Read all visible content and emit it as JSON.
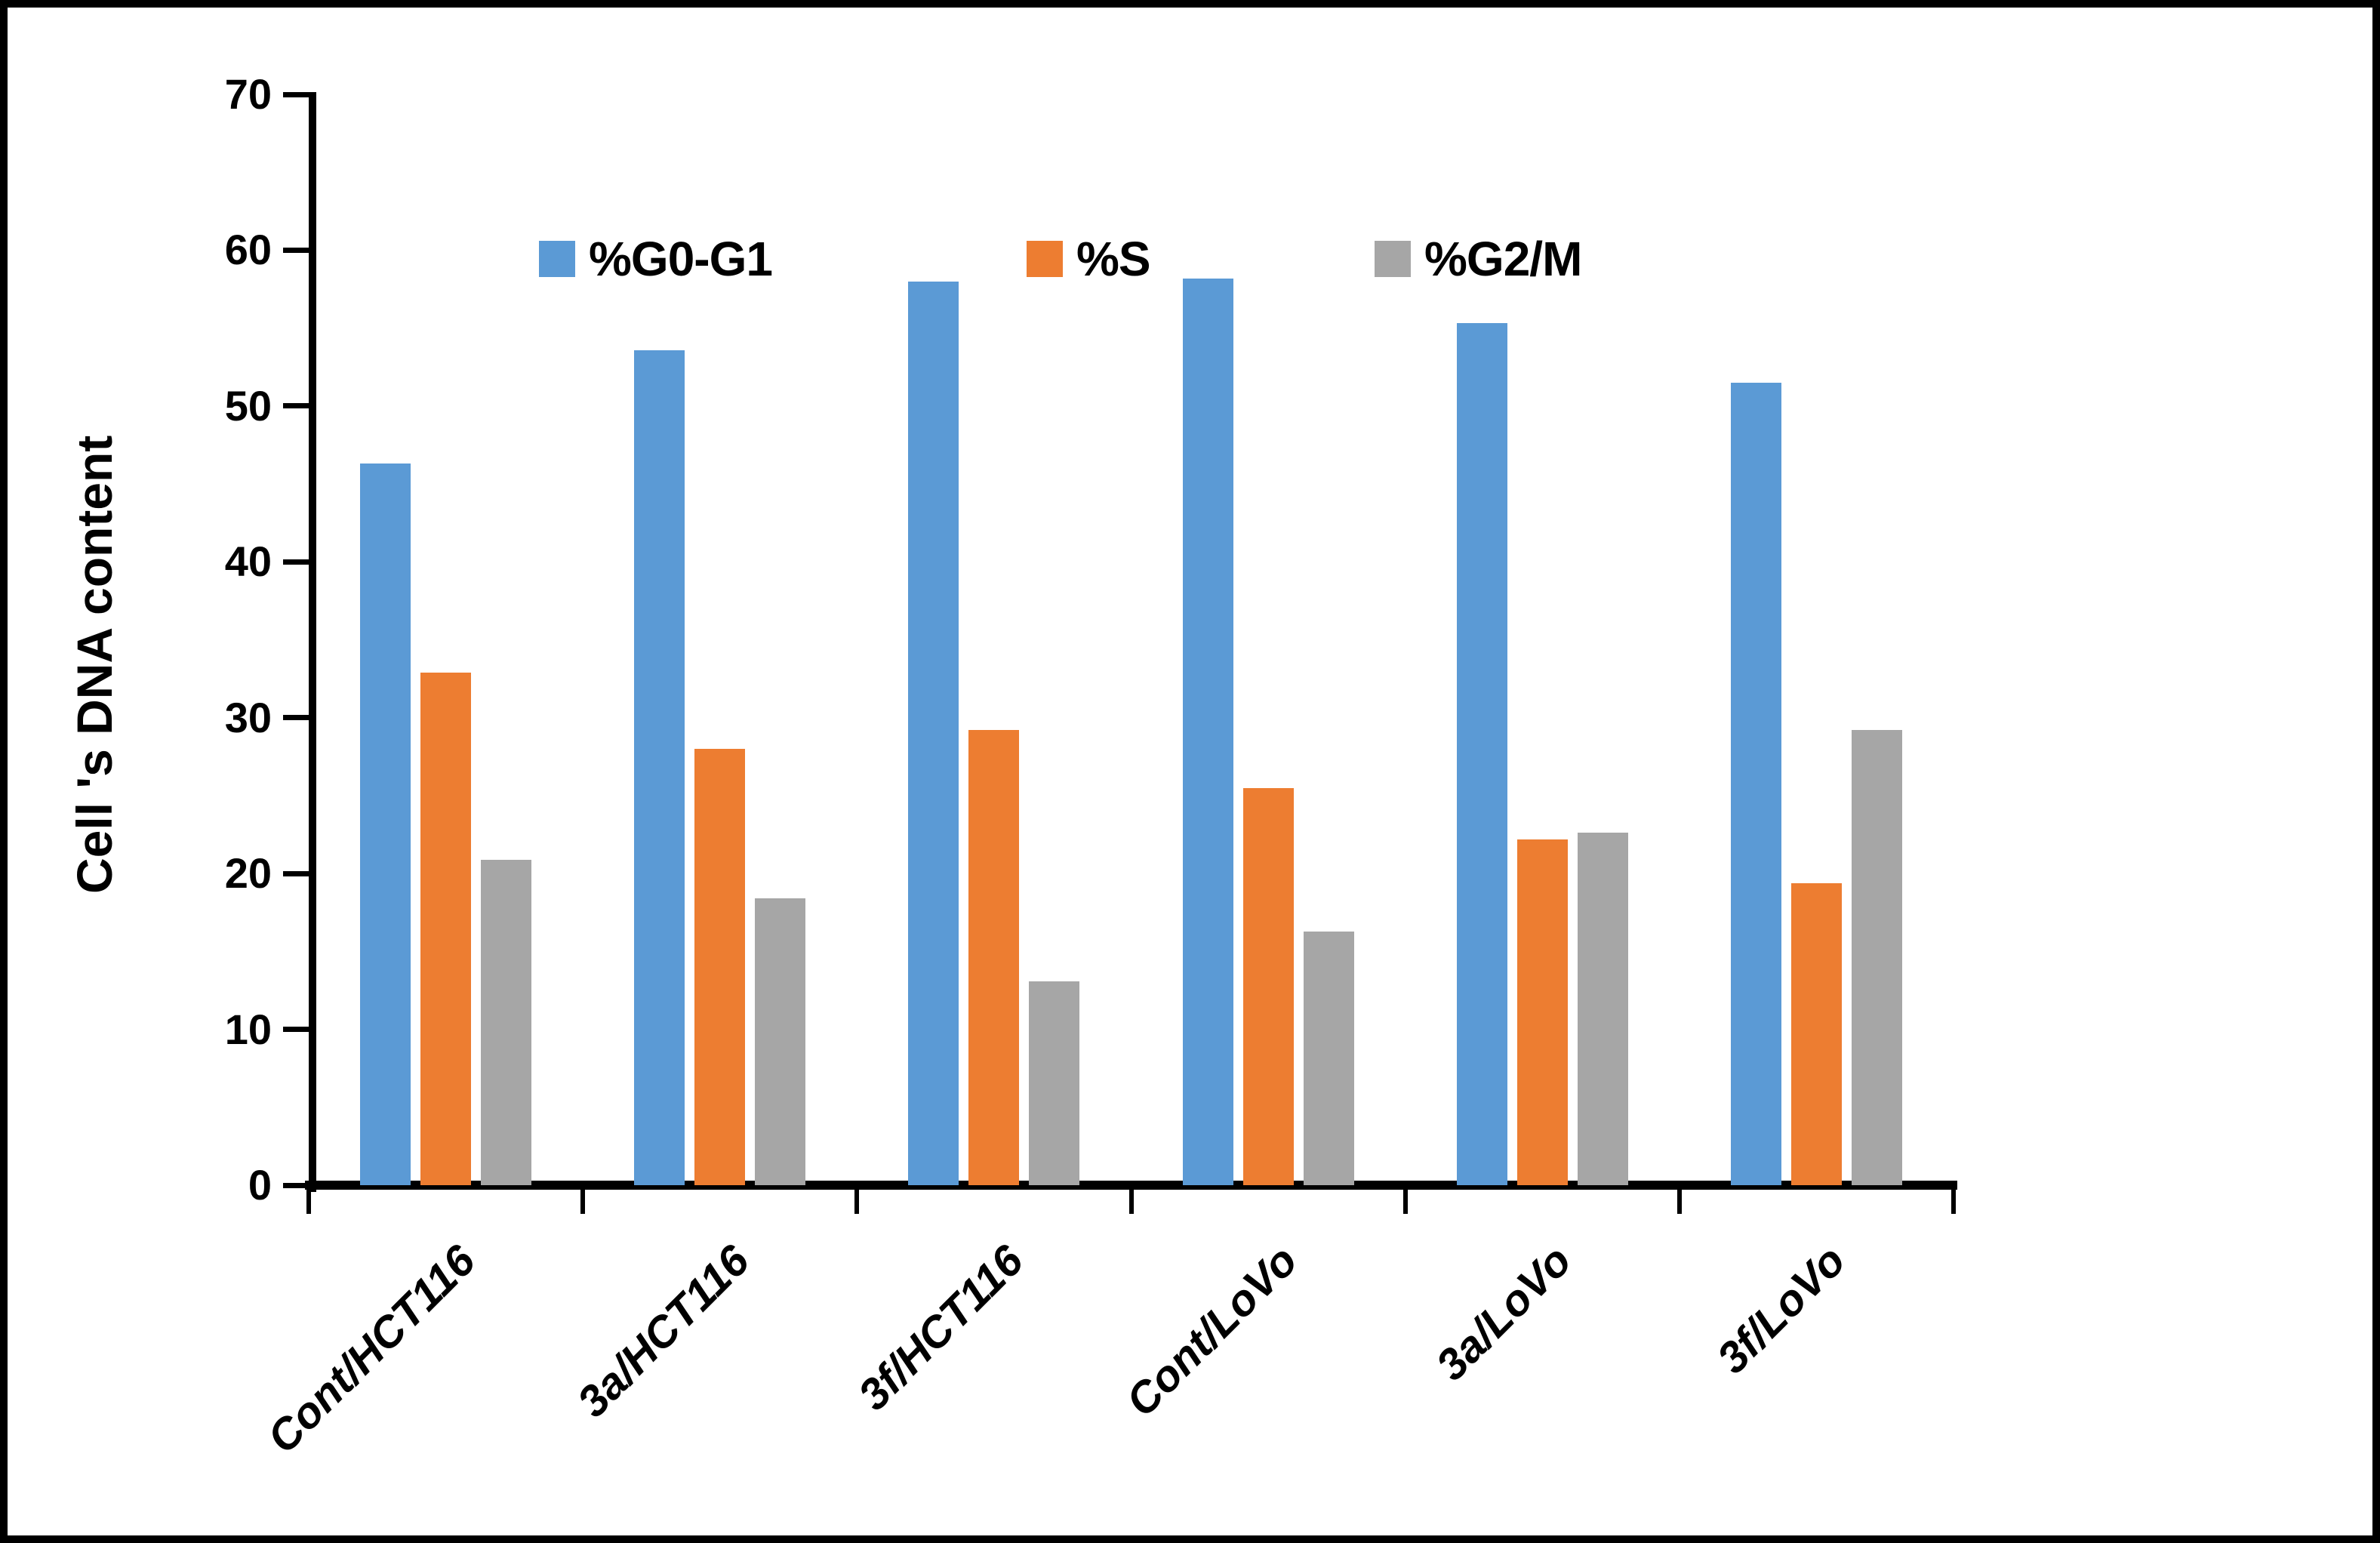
{
  "chart_data": {
    "type": "bar",
    "title": "",
    "xlabel": "",
    "ylabel": "Cell 's DNA content",
    "ylim": [
      0,
      70
    ],
    "yticks": [
      0,
      10,
      20,
      30,
      40,
      50,
      60,
      70
    ],
    "grid": false,
    "legend_position": "top-inside",
    "categories": [
      "Cont/HCT116",
      "3a/HCT116",
      "3f/HCT116",
      "Cont/LoVo",
      "3a/LoVo",
      "3f/LoVo"
    ],
    "series": [
      {
        "name": "%G0-G1",
        "color": "#5B9AD5",
        "values": [
          46.3,
          53.6,
          58.0,
          58.2,
          55.3,
          51.5
        ]
      },
      {
        "name": "%S",
        "color": "#ED7D31",
        "values": [
          32.9,
          28.0,
          29.2,
          25.5,
          22.2,
          19.4
        ]
      },
      {
        "name": "%G2/M",
        "color": "#A6A6A6",
        "values": [
          20.9,
          18.4,
          13.1,
          16.3,
          22.6,
          29.2
        ]
      }
    ]
  },
  "colors": {
    "axis": "#000000",
    "text": "#000000",
    "background": "#FFFFFF",
    "frame_border": "#000000"
  }
}
